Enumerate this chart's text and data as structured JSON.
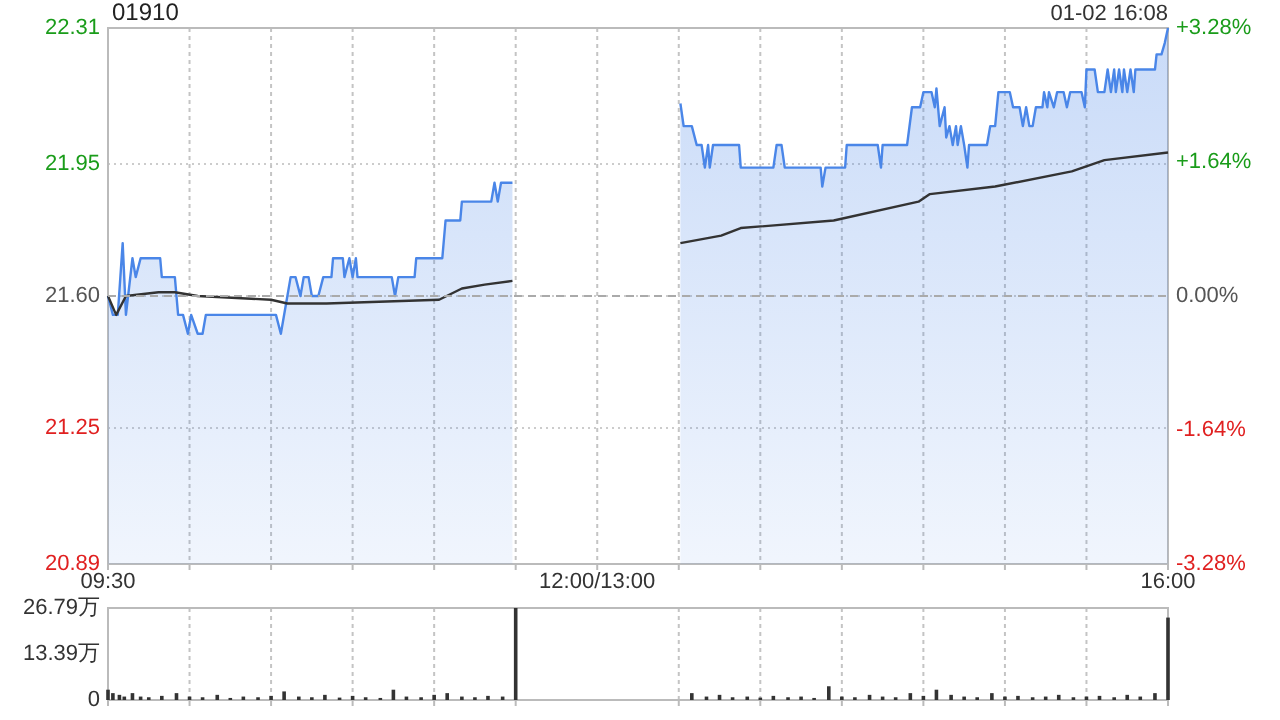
{
  "chart_data": [
    {
      "type": "line",
      "title": "01910",
      "annotations": [
        "01-02 16:08"
      ],
      "series": [
        {
          "type": "area",
          "color": "#4a86e8",
          "x": [
            9.5,
            9.53,
            9.56,
            9.59,
            9.61,
            9.65,
            9.67,
            9.7,
            9.82,
            9.83,
            9.91,
            9.93,
            9.96,
            9.99,
            10.01,
            10.05,
            10.08,
            10.1,
            10.53,
            10.56,
            10.6,
            10.62,
            10.65,
            10.68,
            10.7,
            10.73,
            10.75,
            10.79,
            10.82,
            10.87,
            10.88,
            10.94,
            10.95,
            10.98,
            11.0,
            11.02,
            11.03,
            11.24,
            11.26,
            11.28,
            11.38,
            11.39,
            11.55,
            11.57,
            11.66,
            11.67,
            11.85,
            11.87,
            11.89,
            11.91,
            11.98,
            12.5,
            13.01,
            13.03,
            13.08,
            13.11,
            13.14,
            13.16,
            13.18,
            13.19,
            13.21,
            13.37,
            13.38,
            13.58,
            13.6,
            13.63,
            13.65,
            13.87,
            13.88,
            13.9,
            14.02,
            14.03,
            14.22,
            14.24,
            14.25,
            14.4,
            14.43,
            14.48,
            14.5,
            14.55,
            14.57,
            14.58,
            14.6,
            14.63,
            14.64,
            14.66,
            14.68,
            14.7,
            14.71,
            14.73,
            14.75,
            14.77,
            14.78,
            14.89,
            14.91,
            14.94,
            14.96,
            15.03,
            15.05,
            15.09,
            15.11,
            15.13,
            15.15,
            15.17,
            15.19,
            15.23,
            15.24,
            15.26,
            15.27,
            15.3,
            15.32,
            15.36,
            15.38,
            15.4,
            15.47,
            15.49,
            15.5,
            15.55,
            15.57,
            15.61,
            15.63,
            15.65,
            15.67,
            15.68,
            15.7,
            15.72,
            15.73,
            15.75,
            15.77,
            15.79,
            15.8,
            15.92,
            15.93,
            15.96,
            15.98,
            16
          ],
          "values": [
            21.6,
            21.55,
            21.55,
            21.74,
            21.55,
            21.7,
            21.65,
            21.7,
            21.7,
            21.65,
            21.65,
            21.55,
            21.55,
            21.5,
            21.55,
            21.5,
            21.5,
            21.55,
            21.55,
            21.5,
            21.6,
            21.65,
            21.65,
            21.6,
            21.65,
            21.65,
            21.6,
            21.6,
            21.65,
            21.65,
            21.7,
            21.7,
            21.65,
            21.7,
            21.65,
            21.7,
            21.65,
            21.65,
            21.6,
            21.65,
            21.65,
            21.7,
            21.7,
            21.8,
            21.8,
            21.85,
            21.85,
            21.9,
            21.85,
            21.9,
            21.9,
            null,
            22.11,
            22.05,
            22.05,
            22.0,
            22.0,
            21.94,
            22.0,
            21.94,
            22.0,
            22.0,
            21.94,
            21.94,
            22.0,
            22.0,
            21.94,
            21.94,
            21.89,
            21.94,
            21.94,
            22.0,
            22.0,
            21.94,
            22.0,
            22.0,
            22.1,
            22.1,
            22.14,
            22.14,
            22.1,
            22.15,
            22.05,
            22.1,
            22.02,
            22.05,
            22.0,
            22.05,
            22.0,
            22.05,
            22.0,
            21.94,
            22.0,
            22.0,
            22.05,
            22.05,
            22.14,
            22.14,
            22.1,
            22.1,
            22.05,
            22.1,
            22.05,
            22.05,
            22.1,
            22.1,
            22.14,
            22.1,
            22.14,
            22.1,
            22.14,
            22.14,
            22.1,
            22.14,
            22.14,
            22.1,
            22.2,
            22.2,
            22.14,
            22.14,
            22.2,
            22.14,
            22.2,
            22.14,
            22.2,
            22.14,
            22.2,
            22.14,
            22.2,
            22.14,
            22.2,
            22.2,
            22.24,
            22.24,
            22.27,
            22.31
          ]
        },
        {
          "type": "line",
          "color": "#333333",
          "x": [
            9.5,
            9.55,
            9.61,
            9.81,
            9.91,
            10.05,
            10.5,
            10.6,
            10.84,
            11.53,
            11.67,
            11.81,
            11.98,
            12.5,
            13.01,
            13.26,
            13.38,
            13.95,
            14.47,
            14.54,
            14.94,
            15.41,
            15.61,
            16
          ],
          "values": [
            21.6,
            21.55,
            21.6,
            21.61,
            21.61,
            21.6,
            21.59,
            21.58,
            21.58,
            21.59,
            21.62,
            21.63,
            21.64,
            null,
            21.74,
            21.76,
            21.78,
            21.8,
            21.85,
            21.87,
            21.89,
            21.93,
            21.96,
            21.98
          ]
        }
      ],
      "xlim": [
        9.5,
        16
      ],
      "xticks": [
        {
          "value": 9.5,
          "label": "09:30"
        },
        {
          "value": 10,
          "label": null
        },
        {
          "value": 10.5,
          "label": null
        },
        {
          "value": 11,
          "label": null
        },
        {
          "value": 11.5,
          "label": null
        },
        {
          "value": 12,
          "label": null
        },
        {
          "value": 12.5,
          "label": "12:00/13:00"
        },
        {
          "value": 13,
          "label": null
        },
        {
          "value": 13.5,
          "label": null
        },
        {
          "value": 14,
          "label": null
        },
        {
          "value": 14.5,
          "label": null
        },
        {
          "value": 15,
          "label": null
        },
        {
          "value": 15.5,
          "label": null
        },
        {
          "value": 16,
          "label": "16:00"
        }
      ],
      "ylim": [
        20.89,
        22.31
      ],
      "yticks": [
        20.89,
        21.25,
        {
          "value": 21.6,
          "label": "21.60"
        },
        21.95,
        22.31
      ],
      "y2lim": [
        -3.28,
        3.28
      ],
      "y2ticks": [
        {
          "value": -3.28,
          "label": "-3.28%"
        },
        {
          "value": -1.64,
          "label": "-1.64%"
        },
        {
          "value": 0,
          "label": "0.00%"
        },
        {
          "value": 1.64,
          "label": "+1.64%"
        },
        {
          "value": 3.28,
          "label": "+3.28%"
        }
      ],
      "ref_lines": [
        {
          "axis": "y",
          "value": 21.6,
          "color": "#aaaaaa",
          "line_style": "dashed"
        }
      ],
      "grid": true
    },
    {
      "type": "bar",
      "color": "#333333",
      "x": [
        9.5,
        9.53,
        9.57,
        9.6,
        9.65,
        9.7,
        9.75,
        9.83,
        9.92,
        10,
        10.08,
        10.17,
        10.25,
        10.33,
        10.42,
        10.5,
        10.58,
        10.67,
        10.75,
        10.83,
        10.92,
        11,
        11.08,
        11.17,
        11.25,
        11.33,
        11.42,
        11.5,
        11.58,
        11.67,
        11.75,
        11.83,
        11.92,
        12,
        13.08,
        13.17,
        13.25,
        13.33,
        13.42,
        13.5,
        13.58,
        13.67,
        13.75,
        13.83,
        13.92,
        14,
        14.08,
        14.17,
        14.25,
        14.33,
        14.42,
        14.5,
        14.58,
        14.67,
        14.75,
        14.83,
        14.92,
        15,
        15.08,
        15.17,
        15.25,
        15.33,
        15.42,
        15.5,
        15.58,
        15.67,
        15.75,
        15.83,
        15.92,
        16
      ],
      "values": [
        3,
        2,
        1.5,
        1,
        2,
        1,
        0.8,
        1.2,
        2,
        1,
        0.8,
        1.5,
        0.6,
        1,
        0.8,
        1.2,
        2.5,
        1,
        0.8,
        1.5,
        0.7,
        1.2,
        0.8,
        0.6,
        3,
        1,
        0.8,
        1.5,
        2,
        1,
        0.8,
        1.2,
        1,
        26.79,
        2,
        1,
        1.5,
        0.8,
        1,
        0.7,
        1.2,
        0.8,
        1,
        0.6,
        4,
        1,
        0.8,
        1.5,
        1,
        0.8,
        2,
        1.2,
        3,
        1.5,
        1,
        0.8,
        2,
        1,
        1.2,
        0.8,
        1,
        1.5,
        0.8,
        1,
        1.2,
        0.8,
        1.5,
        1,
        2,
        24
      ],
      "xlim": [
        9.5,
        16
      ],
      "xticks": [
        {
          "value": 9.5,
          "label": null
        },
        {
          "value": 10,
          "label": null
        },
        {
          "value": 10.5,
          "label": null
        },
        {
          "value": 11,
          "label": null
        },
        {
          "value": 11.5,
          "label": null
        },
        {
          "value": 12,
          "label": null
        },
        {
          "value": 13,
          "label": null
        },
        {
          "value": 13.5,
          "label": null
        },
        {
          "value": 14,
          "label": null
        },
        {
          "value": 14.5,
          "label": null
        },
        {
          "value": 15,
          "label": null
        },
        {
          "value": 15.5,
          "label": null
        },
        {
          "value": 16,
          "label": null
        }
      ],
      "ylim": [
        0,
        26.79
      ],
      "yticks": [
        0,
        {
          "value": 13.39,
          "label": "13.39万"
        },
        {
          "value": 26.79,
          "label": "26.79万"
        }
      ],
      "tick_labels": "y",
      "grid": "x"
    }
  ]
}
